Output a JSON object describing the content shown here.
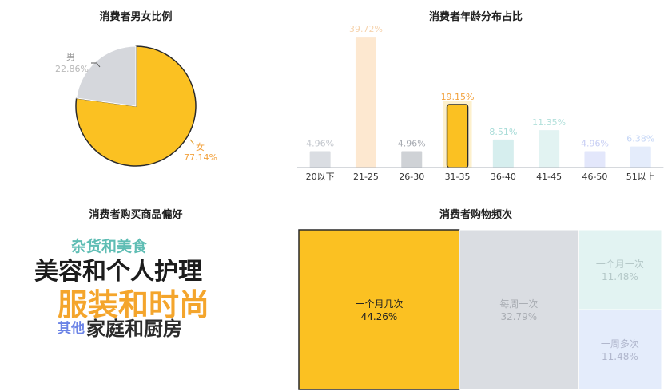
{
  "colors": {
    "yellow": "#fbc122",
    "gray": "#d5d7dc",
    "cream": "#fde8d0",
    "teal_light": "#d6eeee",
    "teal_lighter": "#e2f3f2",
    "lavender": "#e3e7fb",
    "blue_light": "#e4ecfb",
    "tm_gray": "#dadde2",
    "orange_text": "#f2a13c"
  },
  "gender_chart": {
    "title": "消费者男女比例",
    "chart_data": {
      "type": "pie",
      "categories": [
        "男",
        "女"
      ],
      "values": [
        22.86,
        77.14
      ],
      "labels": [
        "22.86%",
        "77.14%"
      ]
    }
  },
  "age_chart": {
    "title": "消费者年龄分布占比",
    "chart_data": {
      "type": "bar",
      "categories": [
        "20以下",
        "21-25",
        "26-30",
        "31-35",
        "36-40",
        "41-45",
        "46-50",
        "51以上"
      ],
      "values": [
        4.96,
        39.72,
        4.96,
        19.15,
        8.51,
        11.35,
        4.96,
        6.38
      ],
      "labels": [
        "4.96%",
        "39.72%",
        "4.96%",
        "19.15%",
        "8.51%",
        "11.35%",
        "4.96%",
        "6.38%"
      ],
      "highlighted": "31-35"
    }
  },
  "preference_chart": {
    "title": "消费者购买商品偏好",
    "words": [
      "杂货和美食",
      "美容和个人护理",
      "服装和时尚",
      "其他",
      "家庭和厨房"
    ]
  },
  "frequency_chart": {
    "title": "消费者购物频次",
    "chart_data": {
      "type": "treemap",
      "categories": [
        "一个月几次",
        "每周一次",
        "一个月一次",
        "一周多次"
      ],
      "values": [
        44.26,
        32.79,
        11.48,
        11.48
      ],
      "labels": [
        "44.26%",
        "32.79%",
        "11.48%",
        "11.48%"
      ]
    }
  }
}
